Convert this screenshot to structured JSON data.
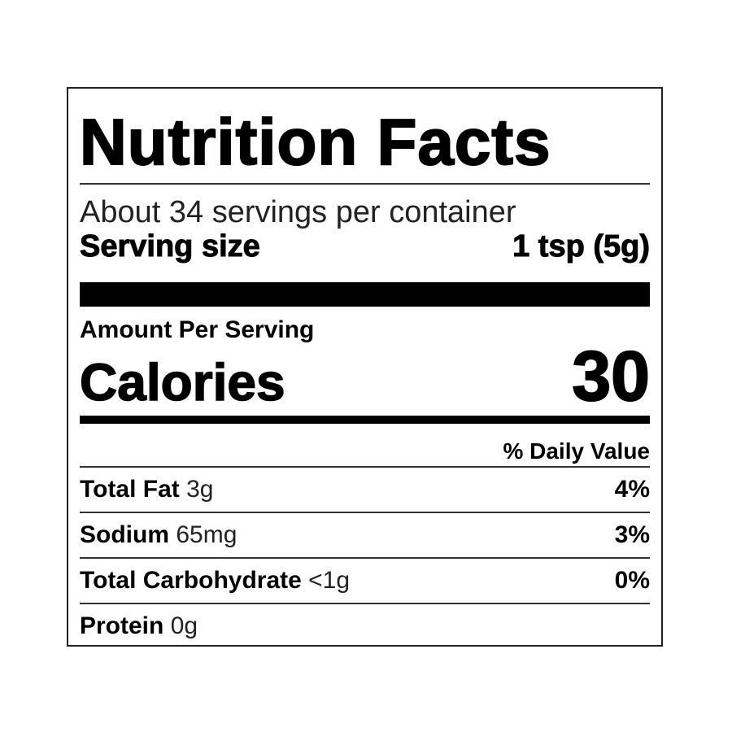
{
  "title": "Nutrition Facts",
  "servings": "About 34 servings per container",
  "serving_size": {
    "label": "Serving size",
    "value": "1 tsp (5g)"
  },
  "amount_per_serving": "Amount Per Serving",
  "calories": {
    "label": "Calories",
    "value": "30"
  },
  "daily_value_header": "% Daily Value",
  "nutrients": [
    {
      "name": "Total Fat",
      "amount": "3g",
      "dv": "4%"
    },
    {
      "name": "Sodium",
      "amount": "65mg",
      "dv": "3%"
    },
    {
      "name": "Total Carbohydrate",
      "amount": "<1g",
      "dv": "0%"
    },
    {
      "name": "Protein",
      "amount": "0g",
      "dv": ""
    }
  ]
}
